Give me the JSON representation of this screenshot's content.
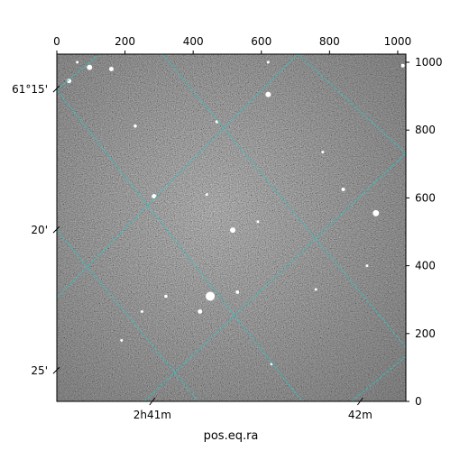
{
  "chart_data": {
    "type": "image",
    "title": "",
    "xlabel": "pos.eq.ra",
    "ylabel": "",
    "pixel_axes": {
      "x": {
        "range": [
          0,
          1024
        ],
        "ticks": [
          0,
          200,
          400,
          600,
          800,
          1000
        ],
        "labels": [
          "0",
          "200",
          "400",
          "600",
          "800",
          "1000"
        ]
      },
      "y": {
        "range": [
          0,
          1024
        ],
        "ticks": [
          0,
          200,
          400,
          600,
          800,
          1000
        ],
        "labels": [
          "0",
          "200",
          "400",
          "600",
          "800",
          "1000"
        ]
      }
    },
    "world_axes": {
      "ra": {
        "ticks": [
          {
            "px": 280,
            "label": "2h41m"
          },
          {
            "px": 890,
            "label": "42m"
          }
        ]
      },
      "dec": {
        "ticks": [
          {
            "py": 920,
            "label": "61°15'"
          },
          {
            "py": 505,
            "label": "20'"
          },
          {
            "py": 90,
            "label": "25'"
          }
        ]
      }
    },
    "grid": true,
    "grid_color": "#2fc4c4",
    "grid_ra_lines": [
      {
        "from": [
          300,
          1024
        ],
        "to": [
          1024,
          720
        ]
      },
      {
        "from": [
          0,
          920
        ],
        "to": [
          1024,
          0
        ],
        "note": ""
      }
    ],
    "stars": [
      {
        "x": 96,
        "y": 985,
        "r": 3
      },
      {
        "x": 160,
        "y": 980,
        "r": 2.5
      },
      {
        "x": 36,
        "y": 945,
        "r": 2.5
      },
      {
        "x": 620,
        "y": 905,
        "r": 3
      },
      {
        "x": 285,
        "y": 605,
        "r": 2.5
      },
      {
        "x": 936,
        "y": 555,
        "r": 3.5
      },
      {
        "x": 516,
        "y": 505,
        "r": 3
      },
      {
        "x": 450,
        "y": 310,
        "r": 5
      },
      {
        "x": 420,
        "y": 265,
        "r": 2.5
      },
      {
        "x": 530,
        "y": 322,
        "r": 2
      },
      {
        "x": 840,
        "y": 625,
        "r": 2
      },
      {
        "x": 230,
        "y": 812,
        "r": 1.8
      },
      {
        "x": 470,
        "y": 825,
        "r": 1.8
      },
      {
        "x": 320,
        "y": 310,
        "r": 1.8
      },
      {
        "x": 1015,
        "y": 990,
        "r": 2
      },
      {
        "x": 620,
        "y": 1000,
        "r": 1.5
      },
      {
        "x": 780,
        "y": 735,
        "r": 1.5
      },
      {
        "x": 590,
        "y": 530,
        "r": 1.5
      },
      {
        "x": 440,
        "y": 610,
        "r": 1.5
      },
      {
        "x": 190,
        "y": 180,
        "r": 1.5
      },
      {
        "x": 60,
        "y": 1000,
        "r": 1.5
      },
      {
        "x": 910,
        "y": 400,
        "r": 1.5
      },
      {
        "x": 250,
        "y": 265,
        "r": 1.5
      },
      {
        "x": 630,
        "y": 110,
        "r": 1.5
      },
      {
        "x": 760,
        "y": 330,
        "r": 1.5
      }
    ]
  }
}
